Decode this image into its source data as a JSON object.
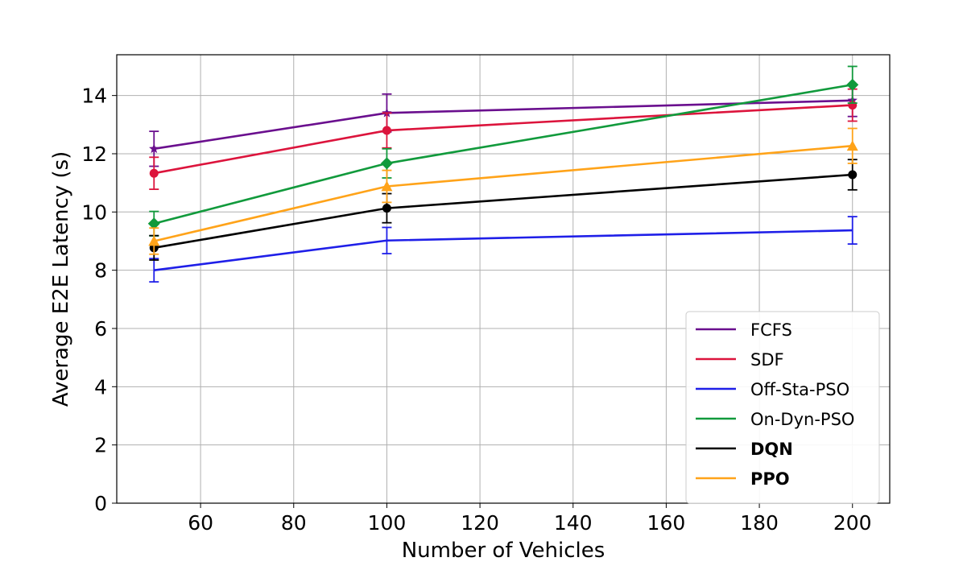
{
  "chart_data": {
    "type": "line",
    "title": "",
    "xlabel": "Number of Vehicles",
    "ylabel": "Average E2E Latency (s)",
    "x": [
      50,
      100,
      200
    ],
    "xlim": [
      42,
      208
    ],
    "ylim": [
      0,
      15.4
    ],
    "xticks": [
      60,
      80,
      100,
      120,
      140,
      160,
      180,
      200
    ],
    "yticks": [
      0,
      2,
      4,
      6,
      8,
      10,
      12,
      14
    ],
    "grid": true,
    "legend_position": "lower-right",
    "error_bars": true,
    "series": [
      {
        "name": "FCFS",
        "color": "#6a0f8e",
        "marker": "star",
        "bold": false,
        "values": [
          12.17,
          13.4,
          13.83
        ],
        "errors": [
          0.6,
          0.65,
          0.55
        ]
      },
      {
        "name": "SDF",
        "color": "#dc143c",
        "marker": "circle",
        "bold": false,
        "values": [
          11.33,
          12.8,
          13.67
        ],
        "errors": [
          0.55,
          0.6,
          0.55
        ]
      },
      {
        "name": "Off-Sta-PSO",
        "color": "#1f1fe8",
        "marker": "none",
        "bold": false,
        "values": [
          8.0,
          9.02,
          9.37
        ],
        "errors": [
          0.4,
          0.45,
          0.47
        ]
      },
      {
        "name": "On-Dyn-PSO",
        "color": "#119a3c",
        "marker": "diamond",
        "bold": false,
        "values": [
          9.6,
          11.67,
          14.37
        ],
        "errors": [
          0.42,
          0.5,
          0.63
        ]
      },
      {
        "name": "DQN",
        "color": "#000000",
        "marker": "circle",
        "bold": true,
        "values": [
          8.77,
          10.13,
          11.28
        ],
        "errors": [
          0.42,
          0.5,
          0.52
        ]
      },
      {
        "name": "PPO",
        "color": "#ffa319",
        "marker": "triangle",
        "bold": true,
        "values": [
          9.0,
          10.88,
          12.27
        ],
        "errors": [
          0.45,
          0.55,
          0.6
        ]
      }
    ]
  }
}
